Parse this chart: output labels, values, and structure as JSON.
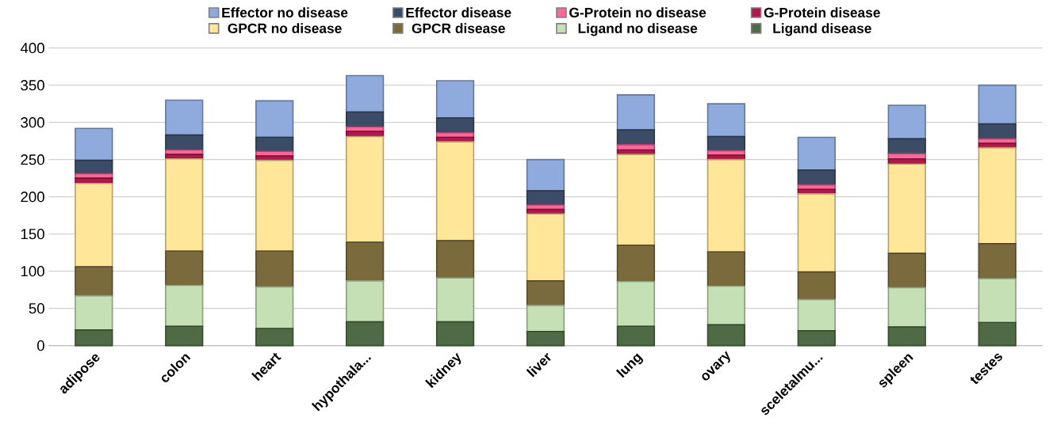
{
  "chart_data": {
    "type": "bar",
    "stacked": true,
    "categories": [
      "adipose",
      "colon",
      "heart",
      "hypothala...",
      "kidney",
      "liver",
      "lung",
      "ovary",
      "sceletalmu...",
      "spleen",
      "testes"
    ],
    "series": [
      {
        "name": "Ligand disease",
        "color": "#4f6b45",
        "values": [
          21,
          26,
          23,
          32,
          32,
          19,
          26,
          28,
          20,
          25,
          31
        ]
      },
      {
        "name": "Ligand no disease",
        "color": "#c5e0b4",
        "values": [
          46,
          55,
          56,
          55,
          59,
          35,
          60,
          52,
          42,
          53,
          59
        ]
      },
      {
        "name": "GPCR disease",
        "color": "#7a6a3c",
        "values": [
          39,
          46,
          48,
          52,
          50,
          33,
          49,
          46,
          37,
          46,
          47
        ]
      },
      {
        "name": "GPCR no disease",
        "color": "#ffe699",
        "values": [
          112,
          124,
          122,
          142,
          133,
          90,
          122,
          124,
          105,
          120,
          129
        ]
      },
      {
        "name": "G-Protein disease",
        "color": "#b0184c",
        "values": [
          7,
          6,
          6,
          7,
          6,
          6,
          6,
          6,
          6,
          7,
          6
        ]
      },
      {
        "name": "G-Protein no disease",
        "color": "#ff6699",
        "values": [
          6,
          6,
          6,
          6,
          6,
          6,
          7,
          6,
          6,
          7,
          6
        ]
      },
      {
        "name": "Effector disease",
        "color": "#3c4b66",
        "values": [
          18,
          20,
          19,
          20,
          20,
          19,
          20,
          19,
          20,
          20,
          20
        ]
      },
      {
        "name": "Effector no disease",
        "color": "#8faadc",
        "values": [
          43,
          47,
          49,
          49,
          50,
          42,
          47,
          44,
          44,
          45,
          52
        ]
      }
    ],
    "ylim": [
      0,
      400
    ],
    "yticks": [
      0,
      50,
      100,
      150,
      200,
      250,
      300,
      350,
      400
    ],
    "grid": "y",
    "legend": "top"
  }
}
